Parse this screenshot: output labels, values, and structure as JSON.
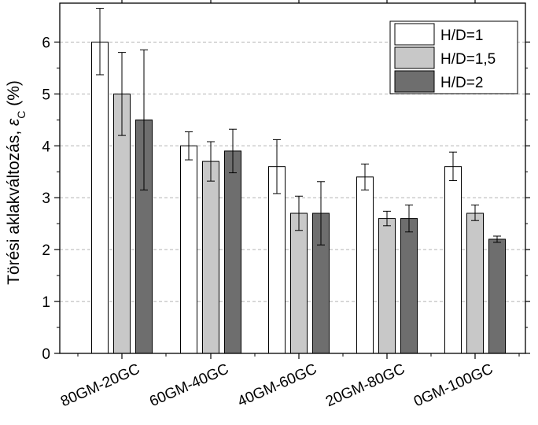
{
  "chart_data": {
    "type": "bar",
    "ylabel": {
      "main": "Törési aklakváltozás, ",
      "symbol": "ε",
      "subscript": "C",
      "unit": " (%)"
    },
    "xlabel": "",
    "ylim": [
      0,
      6.75
    ],
    "yticks": [
      "0",
      "1",
      "2",
      "3",
      "4",
      "5",
      "6"
    ],
    "grid": "horizontal dashed",
    "legend_position": "top-right",
    "categories": [
      "80GM-20GC",
      "60GM-40GC",
      "40GM-60GC",
      "20GM-80GC",
      "0GM-100GC"
    ],
    "series": [
      {
        "name": "H/D=1",
        "color": "#ffffff",
        "values": [
          6.0,
          4.0,
          3.6,
          3.4,
          3.6
        ],
        "err_low": [
          5.37,
          3.73,
          3.08,
          3.15,
          3.33
        ],
        "err_high": [
          6.65,
          4.27,
          4.12,
          3.65,
          3.88
        ]
      },
      {
        "name": "H/D=1,5",
        "color": "#c8c8c8",
        "values": [
          5.0,
          3.7,
          2.7,
          2.6,
          2.7
        ],
        "err_low": [
          4.2,
          3.32,
          2.37,
          2.46,
          2.56
        ],
        "err_high": [
          5.8,
          4.08,
          3.03,
          2.74,
          2.86
        ]
      },
      {
        "name": "H/D=2",
        "color": "#6e6e6e",
        "values": [
          4.5,
          3.9,
          2.7,
          2.6,
          2.2
        ],
        "err_low": [
          3.15,
          3.48,
          2.09,
          2.34,
          2.14
        ],
        "err_high": [
          5.85,
          4.32,
          3.31,
          2.86,
          2.26
        ]
      }
    ]
  }
}
